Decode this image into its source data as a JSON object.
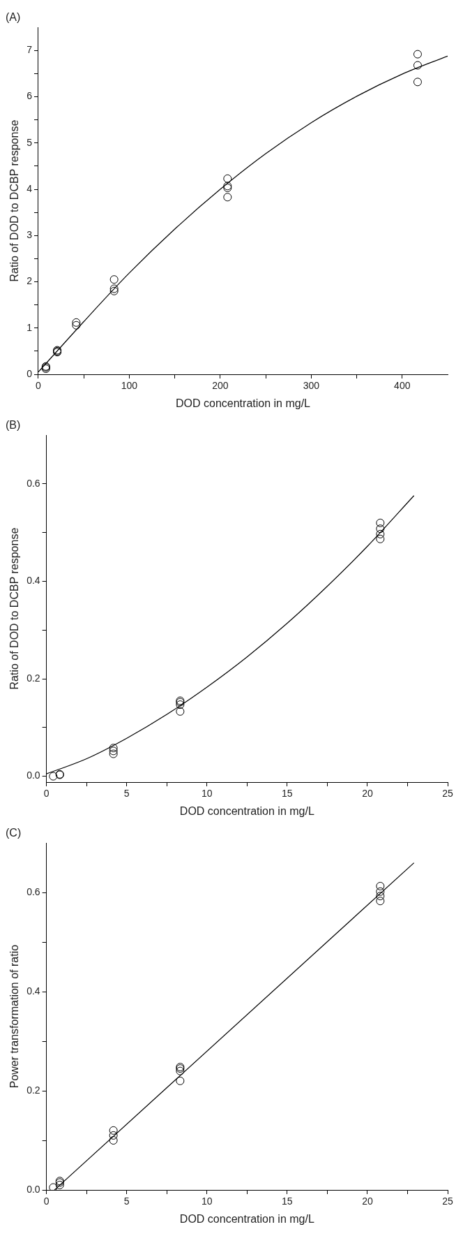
{
  "chart_data": [
    {
      "type": "scatter",
      "title": "(A)",
      "xlabel": "DOD concentration in mg/L",
      "ylabel": "Ratio of DOD to DCBP response",
      "xlim": [
        0,
        450
      ],
      "ylim": [
        0,
        7.5
      ],
      "xticks": [
        0,
        {
          "value": 50,
          "label": null
        },
        100,
        {
          "value": 150,
          "label": null
        },
        200,
        {
          "value": 250,
          "label": null
        },
        300,
        {
          "value": 350,
          "label": null
        },
        400
      ],
      "yticks": [
        0,
        {
          "value": 0.5,
          "label": null
        },
        1,
        {
          "value": 1.5,
          "label": null
        },
        2,
        {
          "value": 2.5,
          "label": null
        },
        3,
        {
          "value": 3.5,
          "label": null
        },
        4,
        {
          "value": 4.5,
          "label": null
        },
        5,
        {
          "value": 5.5,
          "label": null
        },
        6,
        {
          "value": 6.5,
          "label": null
        },
        7
      ],
      "grid": false,
      "legend": false,
      "series": [
        {
          "type": "scatter",
          "marker": "circle",
          "color": "#000000",
          "x": [
            8.3,
            8.3,
            8.3,
            20.8,
            20.8,
            20.8,
            41.7,
            41.7,
            83.3,
            83.3,
            83.3,
            208,
            208,
            208,
            208,
            417,
            417,
            417
          ],
          "values": [
            0.15,
            0.12,
            0.17,
            0.52,
            0.48,
            0.5,
            1.12,
            1.06,
            2.05,
            1.85,
            1.8,
            4.23,
            4.07,
            4.03,
            3.83,
            6.92,
            6.68,
            6.32
          ]
        },
        {
          "type": "line",
          "marker": "none",
          "line_style": "solid",
          "color": "#000000",
          "x": [
            0,
            50,
            100,
            150,
            200,
            250,
            300,
            350,
            400,
            450
          ],
          "values": [
            0.05,
            1.14,
            2.19,
            3.14,
            4.0,
            4.77,
            5.44,
            6.01,
            6.49,
            6.88
          ]
        }
      ]
    },
    {
      "type": "scatter",
      "title": "(B)",
      "xlabel": "DOD concentration in mg/L",
      "ylabel": "Ratio of DOD to DCBP response",
      "xlim": [
        0,
        25
      ],
      "ylim": [
        -0.012,
        0.7
      ],
      "xticks": [
        0,
        {
          "value": 2.5,
          "label": null
        },
        5,
        {
          "value": 7.5,
          "label": null
        },
        10,
        {
          "value": 12.5,
          "label": null
        },
        15,
        {
          "value": 17.5,
          "label": null
        },
        20,
        {
          "value": 22.5,
          "label": null
        },
        25
      ],
      "yticks": [
        {
          "value": 0,
          "label": "0.0"
        },
        {
          "value": 0.1,
          "label": null
        },
        0.2,
        {
          "value": 0.3,
          "label": null
        },
        0.4,
        {
          "value": 0.5,
          "label": null
        },
        0.6
      ],
      "grid": false,
      "legend": false,
      "series": [
        {
          "type": "scatter",
          "marker": "circle",
          "color": "#000000",
          "x": [
            0.42,
            0.83,
            0.83,
            4.17,
            4.17,
            4.17,
            8.33,
            8.33,
            8.33,
            8.33,
            20.8,
            20.8,
            20.8,
            20.8
          ],
          "values": [
            0.0,
            0.003,
            0.004,
            0.058,
            0.052,
            0.046,
            0.155,
            0.152,
            0.147,
            0.133,
            0.52,
            0.508,
            0.497,
            0.487
          ]
        },
        {
          "type": "line",
          "marker": "none",
          "line_style": "solid",
          "color": "#000000",
          "x": [
            0,
            2.5,
            5,
            7.5,
            10,
            12.5,
            15,
            17.5,
            20,
            22.9
          ],
          "values": [
            0.005,
            0.036,
            0.078,
            0.127,
            0.183,
            0.245,
            0.314,
            0.39,
            0.472,
            0.576
          ]
        }
      ]
    },
    {
      "type": "scatter",
      "title": "(C)",
      "xlabel": "DOD concentration in mg/L",
      "ylabel": "Power transformation of ratio",
      "xlim": [
        0,
        25
      ],
      "ylim": [
        0,
        0.7
      ],
      "xticks": [
        0,
        {
          "value": 2.5,
          "label": null
        },
        5,
        {
          "value": 7.5,
          "label": null
        },
        10,
        {
          "value": 12.5,
          "label": null
        },
        15,
        {
          "value": 17.5,
          "label": null
        },
        20,
        {
          "value": 22.5,
          "label": null
        },
        25
      ],
      "yticks": [
        {
          "value": 0,
          "label": "0.0"
        },
        {
          "value": 0.1,
          "label": null
        },
        0.2,
        {
          "value": 0.3,
          "label": null
        },
        0.4,
        {
          "value": 0.5,
          "label": null
        },
        0.6
      ],
      "grid": false,
      "legend": false,
      "series": [
        {
          "type": "scatter",
          "marker": "circle",
          "color": "#000000",
          "x": [
            0.42,
            0.83,
            0.83,
            0.83,
            4.17,
            4.17,
            4.17,
            8.33,
            8.33,
            8.33,
            8.33,
            20.8,
            20.8,
            20.8,
            20.8
          ],
          "values": [
            0.005,
            0.018,
            0.015,
            0.01,
            0.12,
            0.11,
            0.1,
            0.248,
            0.245,
            0.24,
            0.22,
            0.613,
            0.602,
            0.593,
            0.583
          ]
        },
        {
          "type": "line",
          "marker": "none",
          "line_style": "solid",
          "color": "#000000",
          "x": [
            0.5,
            22.9
          ],
          "values": [
            0,
            0.66
          ]
        }
      ]
    }
  ]
}
